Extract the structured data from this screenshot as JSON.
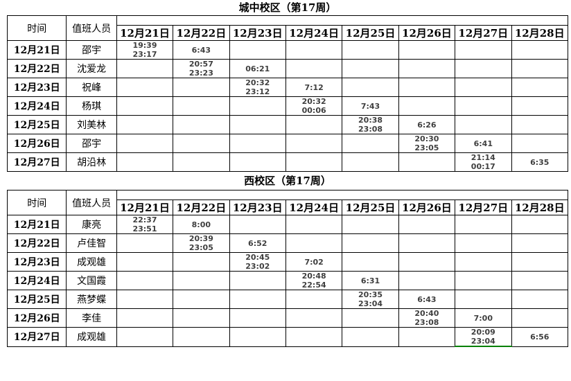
{
  "page": {
    "background_color": "#ffffff",
    "border_color": "#000000",
    "time_text_color": "#3f3f3f"
  },
  "header": {
    "time_label": "时间",
    "staff_label": "值班人员"
  },
  "annotations": {
    "green_bottom_border": {
      "table_index": 1,
      "row_index": 6,
      "col_index": 6,
      "color": "#008000"
    }
  },
  "tables": [
    {
      "id": "chengzhong",
      "title": "城中校区（第17周）",
      "date_columns": [
        "12月21日",
        "12月22日",
        "12月23日",
        "12月24日",
        "12月25日",
        "12月26日",
        "12月27日",
        "12月28日"
      ],
      "rows": [
        {
          "date": "12月21日",
          "staff": "邵宇",
          "cells": [
            "19:39\n23:17",
            "6:43",
            "",
            "",
            "",
            "",
            "",
            ""
          ]
        },
        {
          "date": "12月22日",
          "staff": "沈爱龙",
          "cells": [
            "",
            "20:57\n23:23",
            "06:21",
            "",
            "",
            "",
            "",
            ""
          ]
        },
        {
          "date": "12月23日",
          "staff": "祝峰",
          "cells": [
            "",
            "",
            "20:32\n23:12",
            "7:12",
            "",
            "",
            "",
            ""
          ]
        },
        {
          "date": "12月24日",
          "staff": "杨琪",
          "cells": [
            "",
            "",
            "",
            "20:32\n00:06",
            "7:43",
            "",
            "",
            ""
          ]
        },
        {
          "date": "12月25日",
          "staff": "刘美林",
          "cells": [
            "",
            "",
            "",
            "",
            "20:38\n23:08",
            "6:26",
            "",
            ""
          ]
        },
        {
          "date": "12月26日",
          "staff": "邵宇",
          "cells": [
            "",
            "",
            "",
            "",
            "",
            "20:30\n23:05",
            "6:41",
            ""
          ]
        },
        {
          "date": "12月27日",
          "staff": "胡沿林",
          "cells": [
            "",
            "",
            "",
            "",
            "",
            "",
            "21:14\n00:17",
            "6:35"
          ]
        }
      ]
    },
    {
      "id": "xiqu",
      "title": "西校区（第17周）",
      "date_columns": [
        "12月21日",
        "12月22日",
        "12月23日",
        "12月24日",
        "12月25日",
        "12月26日",
        "12月27日",
        "12月28日"
      ],
      "rows": [
        {
          "date": "12月21日",
          "staff": "康亮",
          "cells": [
            "22:37\n23:51",
            "8:00",
            "",
            "",
            "",
            "",
            "",
            ""
          ]
        },
        {
          "date": "12月22日",
          "staff": "卢佳智",
          "cells": [
            "",
            "20:39\n23:05",
            "6:52",
            "",
            "",
            "",
            "",
            ""
          ]
        },
        {
          "date": "12月23日",
          "staff": "成观雄",
          "cells": [
            "",
            "",
            "20:45\n23:02",
            "7:02",
            "",
            "",
            "",
            ""
          ]
        },
        {
          "date": "12月24日",
          "staff": "文国霞",
          "cells": [
            "",
            "",
            "",
            "20:48\n22:54",
            "6:31",
            "",
            "",
            ""
          ]
        },
        {
          "date": "12月25日",
          "staff": "燕梦蝶",
          "cells": [
            "",
            "",
            "",
            "",
            "20:35\n23:04",
            "6:43",
            "",
            ""
          ]
        },
        {
          "date": "12月26日",
          "staff": "李佳",
          "cells": [
            "",
            "",
            "",
            "",
            "",
            "20:40\n23:08",
            "7:00",
            ""
          ]
        },
        {
          "date": "12月27日",
          "staff": "成观雄",
          "cells": [
            "",
            "",
            "",
            "",
            "",
            "",
            "20:09\n23:04",
            "6:56"
          ]
        }
      ]
    }
  ]
}
